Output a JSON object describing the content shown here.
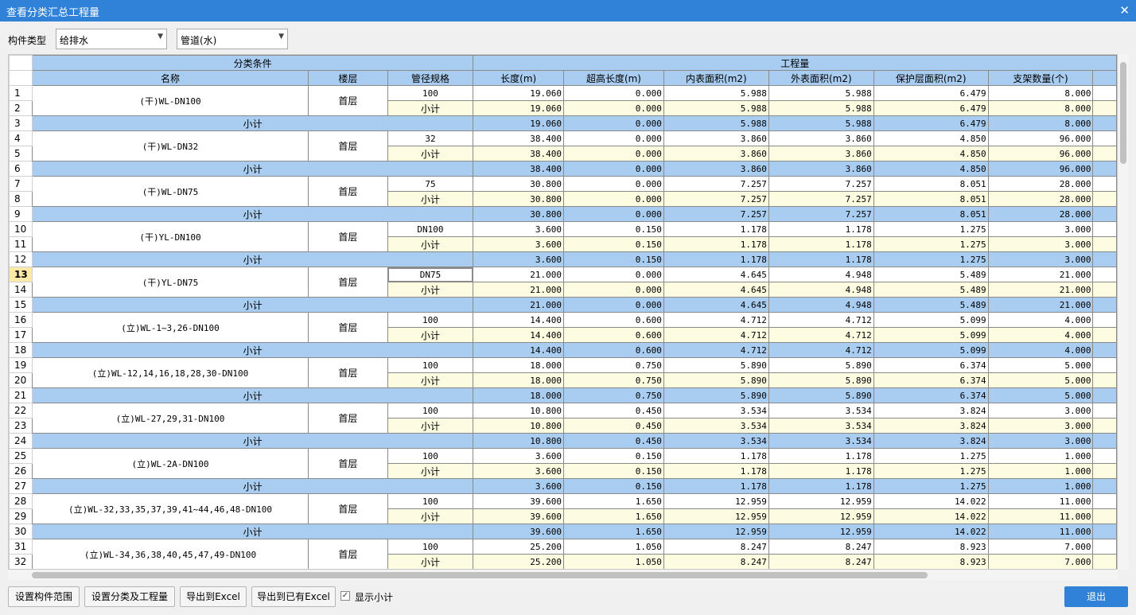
{
  "window": {
    "title": "查看分类汇总工程量",
    "close": "✕"
  },
  "filters": {
    "component_type_label": "构件类型",
    "combo1_value": "给排水",
    "combo2_value": "管道(水)"
  },
  "table": {
    "group_headers": [
      "分类条件",
      "工程量"
    ],
    "columns": [
      "名称",
      "楼层",
      "管径规格",
      "长度(m)",
      "超高长度(m)",
      "内表面积(m2)",
      "外表面积(m2)",
      "保护层面积(m2)",
      "支架数量(个)"
    ],
    "subtotal_label": "小计",
    "groups": [
      {
        "name": "(干)WL-DN100",
        "floor": "首层",
        "spec": "100",
        "values": [
          "19.060",
          "0.000",
          "5.988",
          "5.988",
          "6.479",
          "8.000"
        ]
      },
      {
        "name": "(干)WL-DN32",
        "floor": "首层",
        "spec": "32",
        "values": [
          "38.400",
          "0.000",
          "3.860",
          "3.860",
          "4.850",
          "96.000"
        ]
      },
      {
        "name": "(干)WL-DN75",
        "floor": "首层",
        "spec": "75",
        "values": [
          "30.800",
          "0.000",
          "7.257",
          "7.257",
          "8.051",
          "28.000"
        ]
      },
      {
        "name": "(干)YL-DN100",
        "floor": "首层",
        "spec": "DN100",
        "values": [
          "3.600",
          "0.150",
          "1.178",
          "1.178",
          "1.275",
          "3.000"
        ]
      },
      {
        "name": "(干)YL-DN75",
        "floor": "首层",
        "spec": "DN75",
        "values": [
          "21.000",
          "0.000",
          "4.645",
          "4.948",
          "5.489",
          "21.000"
        ]
      },
      {
        "name": "(立)WL-1~3,26-DN100",
        "floor": "首层",
        "spec": "100",
        "values": [
          "14.400",
          "0.600",
          "4.712",
          "4.712",
          "5.099",
          "4.000"
        ]
      },
      {
        "name": "(立)WL-12,14,16,18,28,30-DN100",
        "floor": "首层",
        "spec": "100",
        "values": [
          "18.000",
          "0.750",
          "5.890",
          "5.890",
          "6.374",
          "5.000"
        ]
      },
      {
        "name": "(立)WL-27,29,31-DN100",
        "floor": "首层",
        "spec": "100",
        "values": [
          "10.800",
          "0.450",
          "3.534",
          "3.534",
          "3.824",
          "3.000"
        ]
      },
      {
        "name": "(立)WL-2A-DN100",
        "floor": "首层",
        "spec": "100",
        "values": [
          "3.600",
          "0.150",
          "1.178",
          "1.178",
          "1.275",
          "1.000"
        ]
      },
      {
        "name": "(立)WL-32,33,35,37,39,41~44,46,48-DN100",
        "floor": "首层",
        "spec": "100",
        "values": [
          "39.600",
          "1.650",
          "12.959",
          "12.959",
          "14.022",
          "11.000"
        ]
      },
      {
        "name": "(立)WL-34,36,38,40,45,47,49-DN100",
        "floor": "首层",
        "spec": "100",
        "values": [
          "25.200",
          "1.050",
          "8.247",
          "8.247",
          "8.923",
          "7.000"
        ]
      }
    ],
    "selected_row": 13
  },
  "buttons": {
    "set_range": "设置构件范围",
    "set_class": "设置分类及工程量",
    "export_excel": "导出到Excel",
    "export_existing": "导出到已有Excel",
    "show_subtotal": "显示小计",
    "show_subtotal_checked": true,
    "exit": "退出"
  }
}
